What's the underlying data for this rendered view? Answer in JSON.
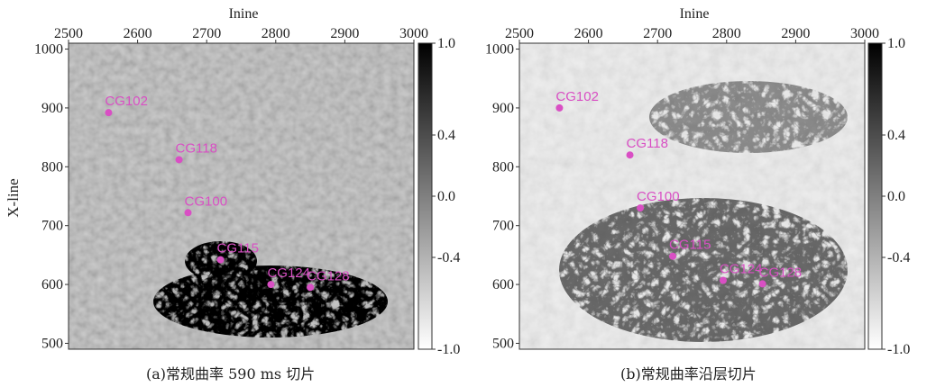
{
  "chart_data": [
    {
      "type": "heatmap",
      "caption": "(a)常规曲率 590 ms 切片",
      "xlabel": "Inine",
      "ylabel": "X-line",
      "xlim": [
        2500,
        3000
      ],
      "ylim": [
        490,
        1010
      ],
      "xticks": [
        2500,
        2600,
        2700,
        2800,
        2900,
        3000
      ],
      "yticks": [
        1000,
        900,
        800,
        700,
        600,
        500
      ],
      "colorbar": {
        "ticks": [
          "1.0",
          "0.4",
          "0.0",
          "-0.4",
          "-1.0"
        ],
        "values": [
          1.0,
          0.4,
          0.0,
          -0.4,
          -1.0
        ],
        "range": [
          -1.0,
          1.0
        ],
        "colormap": "gray"
      },
      "points": [
        {
          "label": "CG102",
          "x": 2558,
          "y": 892
        },
        {
          "label": "CG118",
          "x": 2660,
          "y": 812
        },
        {
          "label": "CG100",
          "x": 2673,
          "y": 722
        },
        {
          "label": "CG115",
          "x": 2720,
          "y": 642
        },
        {
          "label": "CG124",
          "x": 2793,
          "y": 600
        },
        {
          "label": "CG128",
          "x": 2850,
          "y": 595
        }
      ]
    },
    {
      "type": "heatmap",
      "caption": "(b)常规曲率沿层切片",
      "xlabel": "Inine",
      "ylabel": "",
      "xlim": [
        2500,
        3000
      ],
      "ylim": [
        490,
        1010
      ],
      "xticks": [
        2500,
        2600,
        2700,
        2800,
        2900,
        3000
      ],
      "yticks": [
        1000,
        900,
        800,
        700,
        600,
        500
      ],
      "colorbar": {
        "ticks": [
          "1.0",
          "0.4",
          "0.0",
          "-0.4",
          "-1.0"
        ],
        "values": [
          1.0,
          0.4,
          0.0,
          -0.4,
          -1.0
        ],
        "range": [
          -1.0,
          1.0
        ],
        "colormap": "gray"
      },
      "points": [
        {
          "label": "CG102",
          "x": 2558,
          "y": 900
        },
        {
          "label": "CG118",
          "x": 2660,
          "y": 820
        },
        {
          "label": "CG100",
          "x": 2675,
          "y": 730
        },
        {
          "label": "CG115",
          "x": 2722,
          "y": 648
        },
        {
          "label": "CG124",
          "x": 2795,
          "y": 607
        },
        {
          "label": "CG128",
          "x": 2852,
          "y": 601
        }
      ]
    }
  ],
  "colors": {
    "well_marker": "#d94fc4",
    "panel_a_bg": "#b9b9b9",
    "panel_b_bg": "#eeeeee"
  }
}
